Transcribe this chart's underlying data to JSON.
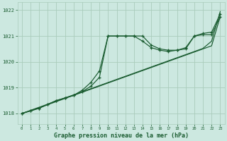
{
  "background_color": "#cce8e0",
  "grid_color": "#aaccbb",
  "line_color": "#1a5c30",
  "title": "Graphe pression niveau de la mer (hPa)",
  "xlim": [
    -0.5,
    23.5
  ],
  "ylim": [
    1017.6,
    1022.3
  ],
  "yticks": [
    1018,
    1019,
    1020,
    1021,
    1022
  ],
  "xticks": [
    0,
    1,
    2,
    3,
    4,
    5,
    6,
    7,
    8,
    9,
    10,
    11,
    12,
    13,
    14,
    15,
    16,
    17,
    18,
    19,
    20,
    21,
    22,
    23
  ],
  "series_straight1_x": [
    0,
    1,
    2,
    3,
    4,
    5,
    6,
    7,
    8,
    9,
    10,
    11,
    12,
    13,
    14,
    15,
    16,
    17,
    18,
    19,
    20,
    21,
    22,
    23
  ],
  "series_straight1_y": [
    1018.0,
    1018.1,
    1018.22,
    1018.34,
    1018.46,
    1018.58,
    1018.7,
    1018.82,
    1018.94,
    1019.06,
    1019.18,
    1019.3,
    1019.42,
    1019.54,
    1019.66,
    1019.78,
    1019.9,
    1020.02,
    1020.14,
    1020.26,
    1020.38,
    1020.5,
    1020.62,
    1021.75
  ],
  "series_straight2_x": [
    0,
    1,
    2,
    3,
    4,
    5,
    6,
    7,
    8,
    9,
    10,
    11,
    12,
    13,
    14,
    15,
    16,
    17,
    18,
    19,
    20,
    21,
    22,
    23
  ],
  "series_straight2_y": [
    1018.0,
    1018.12,
    1018.24,
    1018.36,
    1018.48,
    1018.6,
    1018.72,
    1018.84,
    1018.96,
    1019.08,
    1019.2,
    1019.32,
    1019.44,
    1019.56,
    1019.68,
    1019.8,
    1019.92,
    1020.04,
    1020.16,
    1020.28,
    1020.4,
    1020.52,
    1020.8,
    1021.95
  ],
  "series_curved1_x": [
    0,
    1,
    2,
    3,
    4,
    5,
    6,
    7,
    8,
    9,
    10,
    11,
    12,
    13,
    14,
    15,
    16,
    17,
    18,
    19,
    20,
    21,
    22,
    23
  ],
  "series_curved1_y": [
    1018.0,
    1018.1,
    1018.2,
    1018.35,
    1018.5,
    1018.6,
    1018.7,
    1018.85,
    1019.05,
    1019.4,
    1021.0,
    1021.0,
    1021.0,
    1021.0,
    1021.0,
    1020.65,
    1020.5,
    1020.45,
    1020.45,
    1020.5,
    1021.0,
    1021.05,
    1021.05,
    1021.75
  ],
  "series_curved2_x": [
    0,
    1,
    2,
    3,
    4,
    5,
    6,
    7,
    8,
    9,
    10,
    11,
    12,
    13,
    14,
    15,
    16,
    17,
    18,
    19,
    20,
    21,
    22,
    23
  ],
  "series_curved2_y": [
    1018.0,
    1018.1,
    1018.2,
    1018.35,
    1018.5,
    1018.6,
    1018.7,
    1018.9,
    1019.2,
    1019.65,
    1021.0,
    1021.0,
    1021.0,
    1021.0,
    1020.8,
    1020.55,
    1020.45,
    1020.4,
    1020.45,
    1020.55,
    1021.0,
    1021.1,
    1021.15,
    1021.85
  ]
}
